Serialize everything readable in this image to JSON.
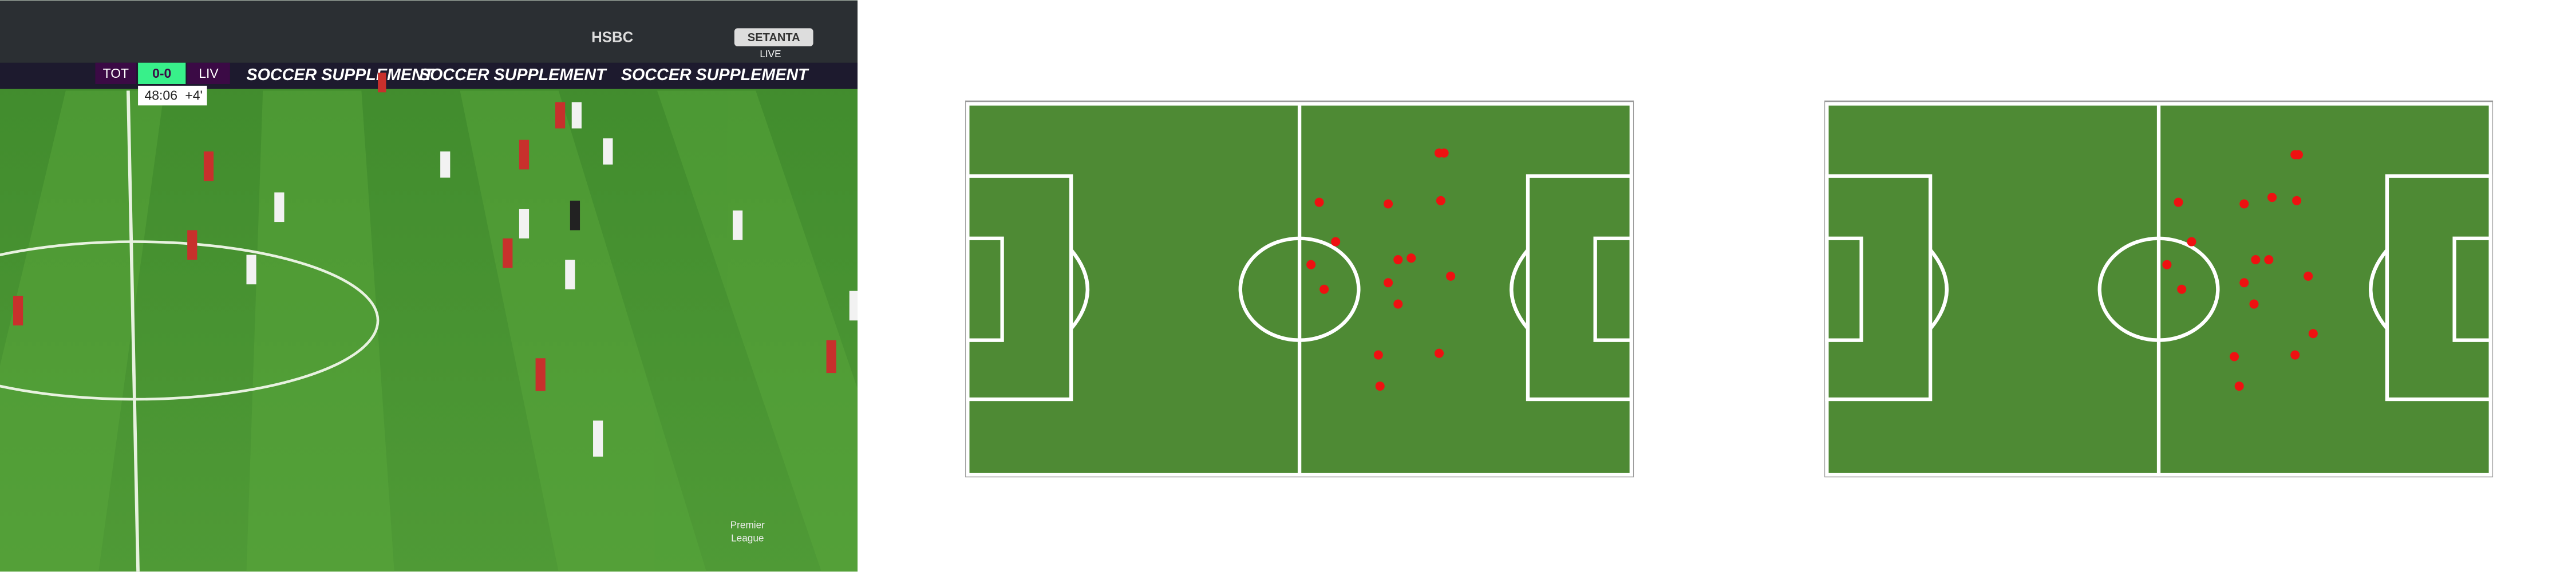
{
  "scoreboard": {
    "home": "TOT",
    "score": "0-0",
    "away": "LIV",
    "clock": "48:06",
    "added_time": "+4'"
  },
  "broadcaster": {
    "name": "SETANTA",
    "status": "LIVE"
  },
  "boards": {
    "sponsor": "SOCCER SUPPLEMENT",
    "bank": "HSBC"
  },
  "league_logo": {
    "line1": "Premier",
    "line2": "League"
  }
}
